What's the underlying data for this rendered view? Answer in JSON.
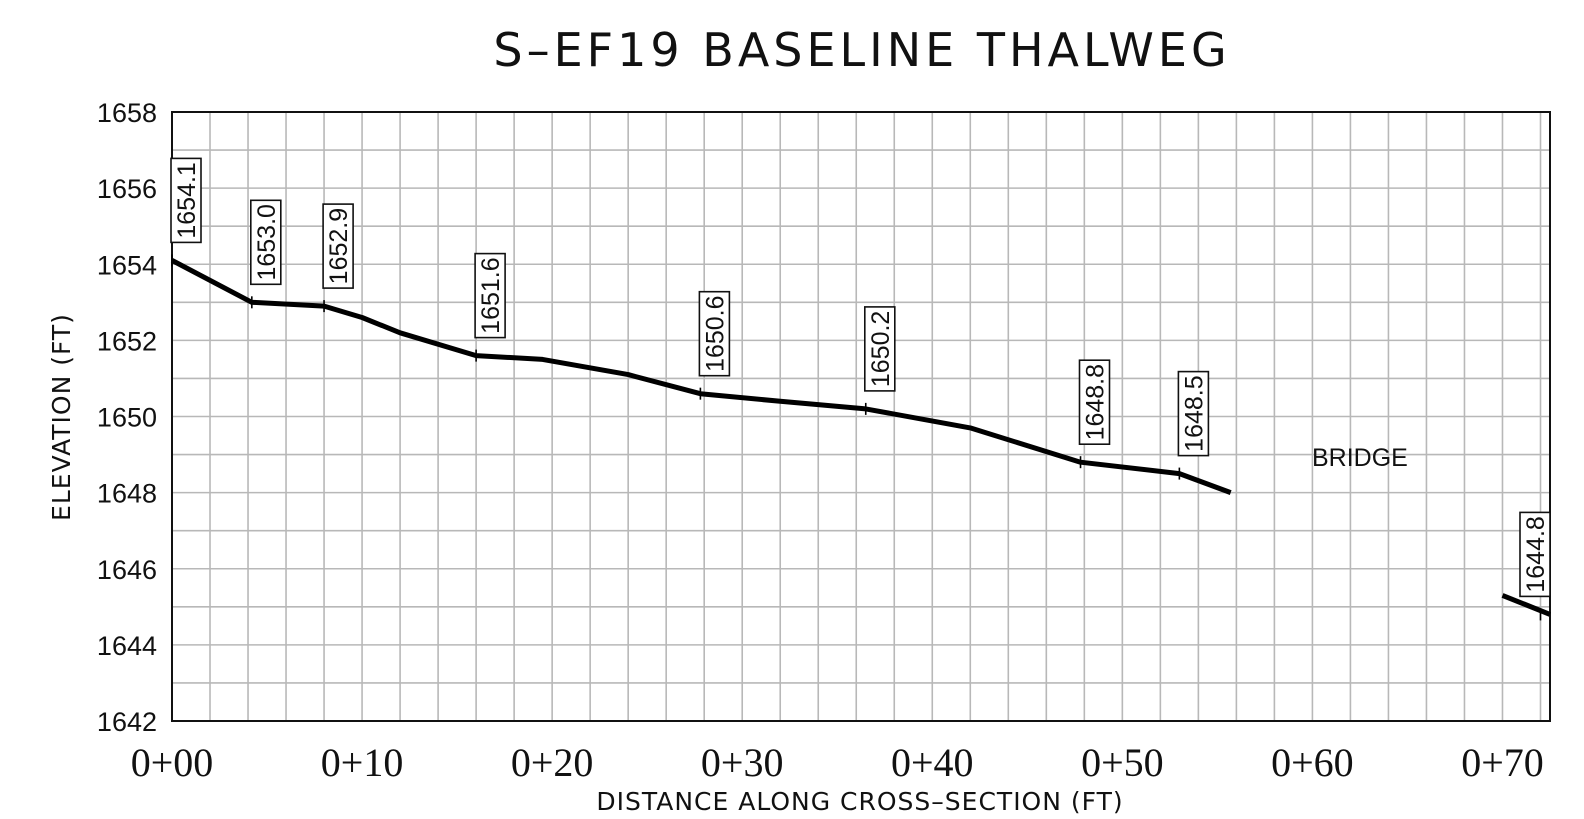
{
  "chart_data": {
    "type": "line",
    "title": "S–EF19 BASELINE THALWEG",
    "xlabel": "DISTANCE ALONG CROSS–SECTION (FT)",
    "ylabel": "ELEVATION (FT)",
    "xlim": [
      0,
      72.5
    ],
    "ylim": [
      1642,
      1658
    ],
    "x_ticks": [
      0,
      10,
      20,
      30,
      40,
      50,
      60,
      70
    ],
    "x_tick_labels": [
      "0+00",
      "0+10",
      "0+20",
      "0+30",
      "0+40",
      "0+50",
      "0+60",
      "0+70"
    ],
    "y_ticks": [
      1642,
      1644,
      1646,
      1648,
      1650,
      1652,
      1654,
      1656,
      1658
    ],
    "y_tick_labels": [
      "1642",
      "1644",
      "1646",
      "1648",
      "1650",
      "1652",
      "1654",
      "1656",
      "1658"
    ],
    "grid": true,
    "series": [
      {
        "segment": "upstream",
        "x": [
          0,
          4.2,
          8,
          10,
          12,
          16,
          19.5,
          24,
          27.8,
          32,
          36.5,
          42,
          47.8,
          53,
          55.7
        ],
        "y": [
          1654.1,
          1653.0,
          1652.9,
          1652.6,
          1652.2,
          1651.6,
          1651.5,
          1651.1,
          1650.6,
          1650.4,
          1650.2,
          1649.7,
          1648.8,
          1648.5,
          1648.0
        ]
      },
      {
        "segment": "downstream",
        "x": [
          70,
          72.5
        ],
        "y": [
          1645.3,
          1644.8
        ]
      }
    ],
    "data_labels": [
      {
        "x": 0,
        "y": 1654.1,
        "text": "1654.1"
      },
      {
        "x": 4.2,
        "y": 1653.0,
        "text": "1653.0"
      },
      {
        "x": 8,
        "y": 1652.9,
        "text": "1652.9"
      },
      {
        "x": 16,
        "y": 1651.6,
        "text": "1651.6"
      },
      {
        "x": 27.8,
        "y": 1650.6,
        "text": "1650.6"
      },
      {
        "x": 36.5,
        "y": 1650.2,
        "text": "1650.2"
      },
      {
        "x": 47.8,
        "y": 1648.8,
        "text": "1648.8"
      },
      {
        "x": 53,
        "y": 1648.5,
        "text": "1648.5"
      },
      {
        "x": 72,
        "y": 1644.8,
        "text": "1644.8"
      }
    ],
    "annotations": [
      {
        "text": "BRIDGE",
        "x": 62.5,
        "y": 1648.7
      }
    ]
  }
}
